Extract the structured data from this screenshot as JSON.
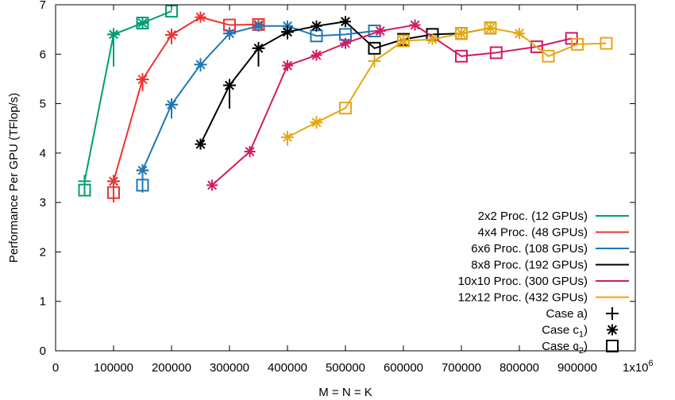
{
  "chart_data": {
    "type": "line",
    "title": "",
    "xlabel": "M = N = K",
    "ylabel": "Performance Per GPU (TFlop/s)",
    "xlim": [
      0,
      1000000
    ],
    "ylim": [
      0,
      7
    ],
    "grid": false,
    "legend_position": "bottom-right",
    "x_ticks": [
      0,
      100000,
      200000,
      300000,
      400000,
      500000,
      600000,
      700000,
      800000,
      900000
    ],
    "x_tick_labels": [
      "0",
      "100000",
      "200000",
      "300000",
      "400000",
      "500000",
      "600000",
      "700000",
      "800000",
      "900000"
    ],
    "x_last_tick_base": "1x10",
    "x_last_tick_exp": "6",
    "y_ticks": [
      0,
      1,
      2,
      3,
      4,
      5,
      6,
      7
    ],
    "y_tick_labels": [
      "0",
      "1",
      "2",
      "3",
      "4",
      "5",
      "6",
      "7"
    ],
    "series": [
      {
        "name": "2x2 Proc. (12 GPUs)",
        "color": "#009e73",
        "x": [
          50000,
          100000,
          150000,
          200000
        ],
        "y": [
          3.43,
          6.4,
          6.63,
          6.87
        ],
        "case_a": [
          [
            50000,
            3.43
          ],
          [
            100000,
            6.4
          ]
        ],
        "case_a_low": [
          [
            50000,
            3.15
          ],
          [
            100000,
            5.75
          ]
        ],
        "case_c1": [
          [
            100000,
            6.4
          ],
          [
            150000,
            6.63
          ]
        ],
        "case_c2": [
          [
            50000,
            3.25
          ],
          [
            150000,
            6.63
          ],
          [
            200000,
            6.87
          ]
        ]
      },
      {
        "name": "4x4 Proc. (48 GPUs)",
        "color": "#ee3333",
        "x": [
          100000,
          150000,
          200000,
          250000,
          300000,
          350000
        ],
        "y": [
          3.43,
          5.49,
          6.39,
          6.75,
          6.59,
          6.6
        ],
        "case_a": [
          [
            100000,
            3.43
          ],
          [
            150000,
            5.49
          ],
          [
            200000,
            6.39
          ]
        ],
        "case_a_low": [
          [
            100000,
            3.0
          ],
          [
            150000,
            5.25
          ],
          [
            200000,
            6.2
          ]
        ],
        "case_c1": [
          [
            100000,
            3.43
          ],
          [
            150000,
            5.49
          ],
          [
            200000,
            6.39
          ],
          [
            250000,
            6.75
          ],
          [
            350000,
            6.6
          ]
        ],
        "case_c2": [
          [
            100000,
            3.2
          ],
          [
            300000,
            6.59
          ],
          [
            350000,
            6.6
          ]
        ]
      },
      {
        "name": "6x6 Proc. (108 GPUs)",
        "color": "#1f78b4",
        "x": [
          150000,
          200000,
          250000,
          300000,
          350000,
          400000,
          450000,
          500000,
          550000
        ],
        "y": [
          3.65,
          4.98,
          5.79,
          6.42,
          6.57,
          6.57,
          6.37,
          6.4,
          6.47
        ],
        "case_a": [
          [
            150000,
            3.65
          ],
          [
            200000,
            4.98
          ],
          [
            250000,
            5.79
          ],
          [
            300000,
            6.42
          ]
        ],
        "case_a_low": [
          [
            150000,
            3.2
          ],
          [
            200000,
            4.7
          ],
          [
            250000,
            5.65
          ],
          [
            300000,
            6.3
          ]
        ],
        "case_c1": [
          [
            150000,
            3.65
          ],
          [
            200000,
            4.98
          ],
          [
            250000,
            5.79
          ],
          [
            300000,
            6.42
          ],
          [
            350000,
            6.57
          ],
          [
            400000,
            6.57
          ]
        ],
        "case_c2": [
          [
            150000,
            3.35
          ],
          [
            450000,
            6.37
          ],
          [
            500000,
            6.4
          ],
          [
            550000,
            6.47
          ]
        ]
      },
      {
        "name": "8x8 Proc. (192 GPUs)",
        "color": "#000000",
        "x": [
          250000,
          300000,
          350000,
          400000,
          450000,
          500000,
          550000,
          600000,
          650000,
          700000,
          750000
        ],
        "y": [
          4.18,
          5.37,
          6.12,
          6.45,
          6.57,
          6.66,
          6.12,
          6.3,
          6.4,
          6.42,
          6.53
        ],
        "case_a": [
          [
            300000,
            5.37
          ],
          [
            350000,
            6.12
          ],
          [
            400000,
            6.45
          ]
        ],
        "case_a_low": [
          [
            300000,
            4.9
          ],
          [
            350000,
            5.75
          ],
          [
            400000,
            6.3
          ]
        ],
        "case_c1": [
          [
            250000,
            4.18
          ],
          [
            300000,
            5.37
          ],
          [
            350000,
            6.12
          ],
          [
            400000,
            6.45
          ],
          [
            450000,
            6.57
          ],
          [
            500000,
            6.66
          ]
        ],
        "case_c2": [
          [
            550000,
            6.12
          ],
          [
            600000,
            6.3
          ],
          [
            650000,
            6.4
          ],
          [
            700000,
            6.42
          ],
          [
            750000,
            6.53
          ]
        ]
      },
      {
        "name": "10x10 Proc. (300 GPUs)",
        "color": "#d01c64",
        "x": [
          270000,
          335000,
          400000,
          450000,
          500000,
          560000,
          620000,
          700000,
          760000,
          830000,
          890000
        ],
        "y": [
          3.35,
          4.03,
          5.77,
          5.98,
          6.22,
          6.47,
          6.59,
          5.96,
          6.03,
          6.15,
          6.32
        ],
        "case_a": [],
        "case_a_low": [],
        "case_c1": [
          [
            270000,
            3.35
          ],
          [
            335000,
            4.03
          ],
          [
            400000,
            5.77
          ],
          [
            450000,
            5.98
          ],
          [
            500000,
            6.22
          ],
          [
            560000,
            6.47
          ],
          [
            620000,
            6.59
          ]
        ],
        "case_c2": [
          [
            700000,
            5.96
          ],
          [
            760000,
            6.03
          ],
          [
            830000,
            6.15
          ],
          [
            890000,
            6.32
          ]
        ]
      },
      {
        "name": "12x12 Proc. (432 GPUs)",
        "color": "#e6a812",
        "x": [
          400000,
          450000,
          500000,
          550000,
          600000,
          650000,
          700000,
          750000,
          800000,
          850000,
          900000,
          950000
        ],
        "y": [
          4.32,
          4.62,
          4.91,
          5.86,
          6.27,
          6.3,
          6.42,
          6.53,
          6.42,
          5.96,
          6.2,
          6.22
        ],
        "case_a": [
          [
            400000,
            4.32
          ],
          [
            450000,
            4.62
          ],
          [
            550000,
            5.86
          ]
        ],
        "case_a_low": [
          [
            400000,
            4.15
          ],
          [
            450000,
            4.5
          ],
          [
            550000,
            5.75
          ]
        ],
        "case_c1": [
          [
            400000,
            4.32
          ],
          [
            450000,
            4.62
          ],
          [
            600000,
            6.27
          ],
          [
            650000,
            6.3
          ],
          [
            700000,
            6.42
          ],
          [
            750000,
            6.53
          ],
          [
            800000,
            6.42
          ]
        ],
        "case_c2": [
          [
            500000,
            4.91
          ],
          [
            600000,
            6.27
          ],
          [
            700000,
            6.42
          ],
          [
            750000,
            6.53
          ],
          [
            850000,
            5.96
          ],
          [
            900000,
            6.2
          ],
          [
            950000,
            6.22
          ]
        ]
      }
    ],
    "markers_legend": [
      {
        "label": "Case a)",
        "marker": "plus"
      },
      {
        "label_base": "Case c",
        "label_sub": "1",
        "label_end": ")",
        "marker": "star"
      },
      {
        "label_base": "Case c",
        "label_sub": "2",
        "label_end": ")",
        "marker": "square"
      }
    ]
  }
}
